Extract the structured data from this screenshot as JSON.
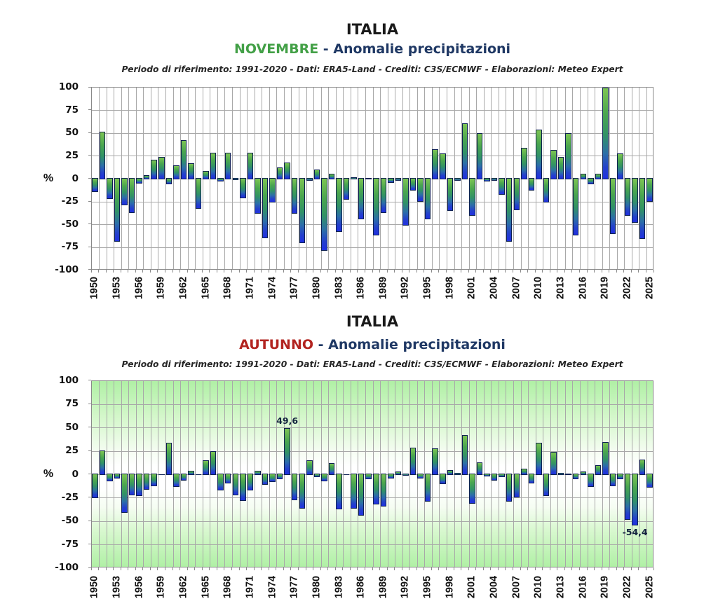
{
  "palette": {
    "bar_gradient": [
      "#7dc553",
      "#4aa64f",
      "#319266",
      "#2c6fa8",
      "#2440cc",
      "#2030e0"
    ],
    "bar_border": "#0d2152",
    "grid_color": "#a8a8a8",
    "axis_border_color": "#898989",
    "novembre_color": "#43a047",
    "autunno_color": "#b22420",
    "subtitle_color": "#1f3864",
    "autumn_bg_green": "#b0f0a5",
    "annotation_color": "#13233f"
  },
  "charts": [
    {
      "title": "ITALIA",
      "season": "NOVEMBRE",
      "season_color": "#43a047",
      "subtitle_rest": " - Anomalie precipitazioni",
      "info": "Periodo di riferimento: 1991-2020 - Dati: ERA5-Land - Crediti: C3S/ECMWF  - Elaborazioni: Meteo Expert",
      "ylabel": "%"
    },
    {
      "title": "ITALIA",
      "season": "AUTUNNO",
      "season_color": "#b22420",
      "subtitle_rest": " - Anomalie precipitazioni",
      "info": "Periodo di riferimento: 1991-2020 - Dati: ERA5-Land - Crediti: C3S/ECMWF  - Elaborazioni: Meteo Expert",
      "ylabel": "%"
    }
  ],
  "chart_data": [
    {
      "type": "bar",
      "title": "ITALIA",
      "season": "NOVEMBRE",
      "subtitle": "Anomalie precipitazioni",
      "info_line": "Periodo di riferimento: 1991-2020 - Dati: ERA5-Land - Crediti: C3S/ECMWF  - Elaborazioni: Meteo Expert",
      "ylabel": "%",
      "ylim": [
        -100,
        100
      ],
      "yticks": [
        100,
        75,
        50,
        25,
        0,
        -25,
        -50,
        -75,
        -100
      ],
      "xticks": [
        1950,
        1953,
        1956,
        1959,
        1962,
        1965,
        1968,
        1971,
        1974,
        1977,
        1980,
        1983,
        1986,
        1989,
        1992,
        1995,
        1998,
        2001,
        2004,
        2007,
        2010,
        2013,
        2016,
        2019,
        2022,
        2025
      ],
      "grid": true,
      "plot_background": "white",
      "x": [
        1950,
        1951,
        1952,
        1953,
        1954,
        1955,
        1956,
        1957,
        1958,
        1959,
        1960,
        1961,
        1962,
        1963,
        1964,
        1965,
        1966,
        1967,
        1968,
        1969,
        1970,
        1971,
        1972,
        1973,
        1974,
        1975,
        1976,
        1977,
        1978,
        1979,
        1980,
        1981,
        1982,
        1983,
        1984,
        1985,
        1986,
        1987,
        1988,
        1989,
        1990,
        1991,
        1992,
        1993,
        1994,
        1995,
        1996,
        1997,
        1998,
        1999,
        2000,
        2001,
        2002,
        2003,
        2004,
        2005,
        2006,
        2007,
        2008,
        2009,
        2010,
        2011,
        2012,
        2013,
        2014,
        2015,
        2016,
        2017,
        2018,
        2019,
        2020,
        2021,
        2022,
        2023,
        2024,
        2025
      ],
      "values": [
        -14,
        52,
        -22,
        -69,
        -29,
        -37,
        -5,
        4,
        21,
        24,
        -6,
        15,
        43,
        17,
        -33,
        9,
        29,
        -3,
        29,
        -1,
        -21,
        29,
        -38,
        -65,
        -26,
        13,
        18,
        -38,
        -70,
        -2,
        10,
        -79,
        6,
        -58,
        -23,
        2,
        -44,
        1,
        -62,
        -37,
        -4,
        -2,
        -51,
        -13,
        -25,
        -44,
        33,
        28,
        -35,
        -2,
        61,
        -40,
        50,
        -3,
        -2,
        -17,
        -69,
        -34,
        34,
        -13,
        54,
        -26,
        32,
        24,
        50,
        -62,
        6,
        -6,
        6,
        100,
        -60,
        28,
        -40,
        -48,
        -66,
        -25
      ],
      "annotations": []
    },
    {
      "type": "bar",
      "title": "ITALIA",
      "season": "AUTUNNO",
      "subtitle": "Anomalie precipitazioni",
      "info_line": "Periodo di riferimento: 1991-2020 - Dati: ERA5-Land - Crediti: C3S/ECMWF  - Elaborazioni: Meteo Expert",
      "ylabel": "%",
      "ylim": [
        -100,
        100
      ],
      "yticks": [
        100,
        75,
        50,
        25,
        0,
        -25,
        -50,
        -75,
        -100
      ],
      "xticks": [
        1950,
        1953,
        1956,
        1959,
        1962,
        1965,
        1968,
        1971,
        1974,
        1977,
        1980,
        1983,
        1986,
        1989,
        1992,
        1995,
        1998,
        2001,
        2004,
        2007,
        2010,
        2013,
        2016,
        2019,
        2022,
        2025
      ],
      "grid": true,
      "plot_background": "green-white-green vertical gradient",
      "x": [
        1950,
        1951,
        1952,
        1953,
        1954,
        1955,
        1956,
        1957,
        1958,
        1959,
        1960,
        1961,
        1962,
        1963,
        1964,
        1965,
        1966,
        1967,
        1968,
        1969,
        1970,
        1971,
        1972,
        1973,
        1974,
        1975,
        1976,
        1977,
        1978,
        1979,
        1980,
        1981,
        1982,
        1983,
        1984,
        1985,
        1986,
        1987,
        1988,
        1989,
        1990,
        1991,
        1992,
        1993,
        1994,
        1995,
        1996,
        1997,
        1998,
        1999,
        2000,
        2001,
        2002,
        2003,
        2004,
        2005,
        2006,
        2007,
        2008,
        2009,
        2010,
        2011,
        2012,
        2013,
        2014,
        2015,
        2016,
        2017,
        2018,
        2019,
        2020,
        2021,
        2022,
        2023,
        2024,
        2025
      ],
      "values": [
        -25,
        26,
        -7,
        -4,
        -41,
        -22,
        -23,
        -16,
        -12,
        0,
        34,
        -13,
        -6,
        4,
        0,
        15,
        25,
        -17,
        -9,
        -22,
        -28,
        -17,
        4,
        -11,
        -8,
        -5,
        49.6,
        -27,
        -36,
        15,
        -3,
        -7,
        12,
        -37,
        0,
        -36,
        -44,
        -5,
        -32,
        -34,
        -4,
        3,
        -1,
        29,
        -4,
        -29,
        28,
        -10,
        5,
        2,
        42,
        -31,
        13,
        -2,
        -6,
        -3,
        -29,
        -24,
        6,
        -9,
        34,
        -23,
        24,
        2,
        1,
        -5,
        3,
        -13,
        10,
        35,
        -12,
        -5,
        -48,
        -54.4,
        16,
        -14
      ],
      "annotations": [
        {
          "year": 1976,
          "text": "49,6",
          "position": "above"
        },
        {
          "year": 2023,
          "text": "-54,4",
          "position": "below"
        }
      ]
    }
  ]
}
